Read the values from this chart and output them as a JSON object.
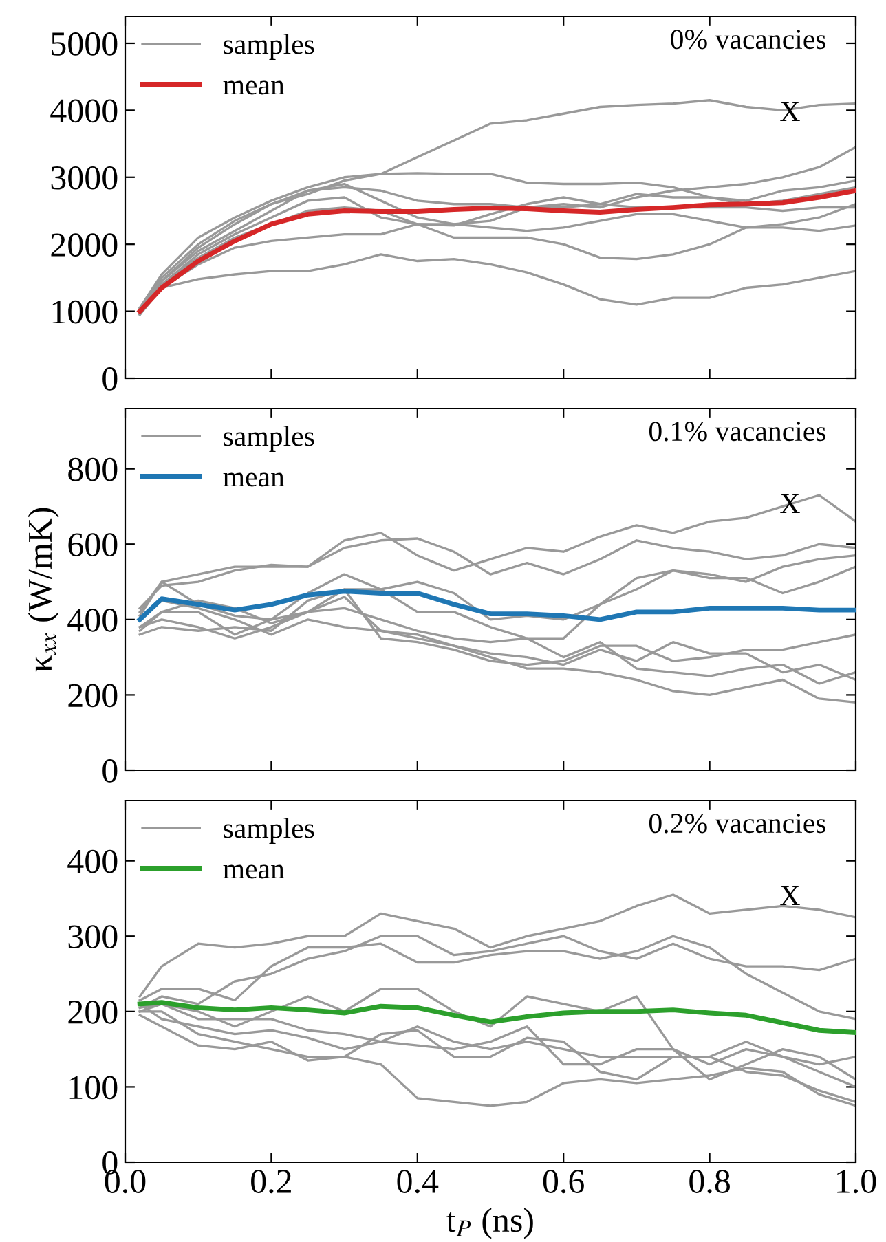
{
  "chart_data": [
    {
      "type": "line",
      "xlim": [
        0,
        1
      ],
      "xticks": [
        0.0,
        0.2,
        0.4,
        0.6,
        0.8,
        1.0
      ],
      "ylim": [
        0,
        5400
      ],
      "yticks": [
        0,
        1000,
        2000,
        3000,
        4000,
        5000
      ],
      "tick_labels": "y",
      "legend": "top left",
      "grid": false,
      "annotations": [
        "0% vacancies",
        "X"
      ],
      "x": [
        0.02,
        0.05,
        0.1,
        0.15,
        0.2,
        0.25,
        0.3,
        0.35,
        0.4,
        0.45,
        0.5,
        0.55,
        0.6,
        0.65,
        0.7,
        0.75,
        0.8,
        0.85,
        0.9,
        0.95,
        1.0
      ],
      "series": [
        {
          "name": "samples",
          "color": "#999999",
          "values": [
            1050,
            1500,
            2000,
            2350,
            2600,
            2750,
            2950,
            3050,
            3300,
            3550,
            3800,
            3850,
            3950,
            4050,
            4080,
            4100,
            4150,
            4050,
            4000,
            4080,
            4100
          ]
        },
        {
          "color": "#999999",
          "values": [
            1000,
            1450,
            1950,
            2300,
            2600,
            2800,
            2900,
            2650,
            2400,
            2300,
            2350,
            2550,
            2600,
            2550,
            2700,
            2800,
            2850,
            2900,
            3000,
            3150,
            3450
          ]
        },
        {
          "color": "#999999",
          "values": [
            1050,
            1550,
            2100,
            2400,
            2650,
            2850,
            3000,
            3050,
            3060,
            3050,
            3050,
            2920,
            2900,
            2900,
            2920,
            2850,
            2700,
            2650,
            2800,
            2850,
            2950
          ]
        },
        {
          "color": "#999999",
          "values": [
            980,
            1450,
            1900,
            2200,
            2500,
            2800,
            2850,
            2800,
            2650,
            2600,
            2600,
            2550,
            2550,
            2600,
            2750,
            2700,
            2700,
            2600,
            2650,
            2750,
            2850
          ]
        },
        {
          "color": "#999999",
          "values": [
            950,
            1400,
            1850,
            2150,
            2400,
            2650,
            2700,
            2400,
            2300,
            2100,
            2100,
            2100,
            2000,
            1800,
            1780,
            1850,
            2000,
            2250,
            2300,
            2400,
            2600
          ]
        },
        {
          "color": "#999999",
          "values": [
            950,
            1350,
            1700,
            1950,
            2050,
            2100,
            2150,
            2150,
            2300,
            2300,
            2250,
            2200,
            2250,
            2350,
            2450,
            2450,
            2350,
            2250,
            2250,
            2200,
            2280
          ]
        },
        {
          "color": "#999999",
          "values": [
            950,
            1350,
            1480,
            1550,
            1600,
            1600,
            1700,
            1850,
            1750,
            1780,
            1700,
            1580,
            1400,
            1180,
            1100,
            1200,
            1200,
            1350,
            1400,
            1500,
            1600
          ]
        },
        {
          "color": "#999999",
          "values": [
            1000,
            1400,
            1800,
            2100,
            2300,
            2500,
            2550,
            2500,
            2300,
            2280,
            2450,
            2600,
            2700,
            2600,
            2550,
            2550,
            2550,
            2550,
            2500,
            2550,
            2550
          ]
        },
        {
          "name": "mean",
          "color": "#d62728",
          "values": [
            1000,
            1350,
            1750,
            2050,
            2300,
            2450,
            2500,
            2490,
            2490,
            2520,
            2540,
            2530,
            2500,
            2480,
            2520,
            2550,
            2590,
            2600,
            2620,
            2700,
            2800
          ]
        }
      ]
    },
    {
      "type": "line",
      "ylabel": "κ$_{xx}$ (W/mK)",
      "xlim": [
        0,
        1
      ],
      "xticks": [
        0.0,
        0.2,
        0.4,
        0.6,
        0.8,
        1.0
      ],
      "ylim": [
        0,
        960
      ],
      "yticks": [
        0,
        200,
        400,
        600,
        800
      ],
      "tick_labels": "y",
      "legend": "top left",
      "grid": false,
      "annotations": [
        "0.1% vacancies",
        "X"
      ],
      "x": [
        0.02,
        0.05,
        0.1,
        0.15,
        0.2,
        0.25,
        0.3,
        0.35,
        0.4,
        0.45,
        0.5,
        0.55,
        0.6,
        0.65,
        0.7,
        0.75,
        0.8,
        0.85,
        0.9,
        0.95,
        1.0
      ],
      "series": [
        {
          "name": "samples",
          "color": "#999999",
          "values": [
            420,
            500,
            520,
            540,
            540,
            540,
            610,
            630,
            570,
            530,
            560,
            590,
            580,
            620,
            650,
            630,
            660,
            670,
            700,
            730,
            660
          ]
        },
        {
          "color": "#999999",
          "values": [
            430,
            490,
            500,
            530,
            545,
            540,
            590,
            610,
            615,
            580,
            520,
            550,
            520,
            560,
            610,
            590,
            580,
            560,
            570,
            600,
            590
          ]
        },
        {
          "color": "#999999",
          "values": [
            410,
            500,
            440,
            410,
            400,
            470,
            520,
            480,
            500,
            470,
            400,
            410,
            400,
            440,
            510,
            530,
            520,
            500,
            540,
            560,
            570
          ]
        },
        {
          "color": "#999999",
          "values": [
            380,
            420,
            420,
            360,
            400,
            420,
            480,
            480,
            420,
            420,
            380,
            350,
            350,
            440,
            480,
            530,
            510,
            510,
            470,
            500,
            540
          ]
        },
        {
          "color": "#999999",
          "values": [
            360,
            380,
            370,
            380,
            370,
            450,
            480,
            350,
            340,
            320,
            290,
            280,
            290,
            330,
            330,
            290,
            300,
            320,
            320,
            340,
            360
          ]
        },
        {
          "color": "#999999",
          "values": [
            380,
            400,
            380,
            350,
            380,
            420,
            460,
            370,
            350,
            330,
            310,
            300,
            280,
            320,
            290,
            340,
            310,
            310,
            260,
            280,
            240
          ]
        },
        {
          "color": "#999999",
          "values": [
            400,
            450,
            430,
            400,
            360,
            400,
            380,
            370,
            360,
            330,
            300,
            270,
            270,
            260,
            240,
            210,
            200,
            220,
            240,
            190,
            180
          ]
        },
        {
          "color": "#999999",
          "values": [
            370,
            420,
            450,
            430,
            390,
            420,
            430,
            400,
            370,
            350,
            340,
            350,
            300,
            340,
            270,
            260,
            250,
            270,
            280,
            230,
            260
          ]
        },
        {
          "name": "mean",
          "color": "#1f77b4",
          "values": [
            400,
            455,
            440,
            425,
            440,
            465,
            475,
            470,
            470,
            440,
            415,
            415,
            410,
            400,
            420,
            420,
            430,
            430,
            430,
            425,
            425
          ]
        }
      ]
    },
    {
      "type": "line",
      "xlabel": "t$_{P}$ (ns)",
      "xlim": [
        0,
        1
      ],
      "ylim": [
        0,
        480
      ],
      "yticks": [
        0,
        100,
        200,
        300,
        400
      ],
      "legend": "top left",
      "grid": false,
      "annotations": [
        "0.2% vacancies",
        "X"
      ],
      "xticks": [
        {
          "value": 0,
          "label": "0.0"
        },
        0.2,
        0.4,
        0.6,
        0.8,
        {
          "value": 1,
          "label": "1.0"
        }
      ],
      "x": [
        0.02,
        0.05,
        0.1,
        0.15,
        0.2,
        0.25,
        0.3,
        0.35,
        0.4,
        0.45,
        0.5,
        0.55,
        0.6,
        0.65,
        0.7,
        0.75,
        0.8,
        0.85,
        0.9,
        0.95,
        1.0
      ],
      "series": [
        {
          "name": "samples",
          "color": "#999999",
          "values": [
            220,
            260,
            290,
            285,
            290,
            300,
            300,
            330,
            320,
            310,
            285,
            300,
            310,
            320,
            340,
            355,
            330,
            335,
            340,
            335,
            325
          ]
        },
        {
          "color": "#999999",
          "values": [
            215,
            230,
            230,
            215,
            260,
            285,
            285,
            290,
            265,
            265,
            275,
            280,
            280,
            270,
            280,
            300,
            285,
            250,
            225,
            200,
            190
          ]
        },
        {
          "color": "#999999",
          "values": [
            205,
            220,
            210,
            240,
            250,
            270,
            280,
            300,
            300,
            275,
            280,
            290,
            300,
            280,
            270,
            290,
            270,
            260,
            260,
            255,
            270
          ]
        },
        {
          "color": "#999999",
          "values": [
            200,
            210,
            200,
            180,
            200,
            220,
            200,
            230,
            230,
            200,
            180,
            220,
            210,
            200,
            220,
            150,
            130,
            150,
            140,
            130,
            140
          ]
        },
        {
          "color": "#999999",
          "values": [
            210,
            190,
            180,
            170,
            175,
            165,
            150,
            160,
            180,
            160,
            150,
            160,
            150,
            140,
            140,
            140,
            140,
            160,
            140,
            120,
            100
          ]
        },
        {
          "color": "#999999",
          "values": [
            200,
            200,
            170,
            160,
            150,
            140,
            140,
            130,
            85,
            80,
            75,
            80,
            105,
            110,
            105,
            110,
            115,
            125,
            120,
            90,
            75
          ]
        },
        {
          "color": "#999999",
          "values": [
            195,
            180,
            155,
            150,
            160,
            135,
            140,
            170,
            175,
            140,
            140,
            165,
            160,
            120,
            110,
            140,
            140,
            120,
            115,
            95,
            80
          ]
        },
        {
          "color": "#999999",
          "values": [
            205,
            210,
            190,
            190,
            190,
            175,
            170,
            160,
            155,
            150,
            160,
            180,
            130,
            130,
            150,
            150,
            110,
            130,
            150,
            140,
            110
          ]
        },
        {
          "name": "mean",
          "color": "#2ca02c",
          "values": [
            210,
            212,
            205,
            202,
            205,
            202,
            198,
            207,
            205,
            195,
            186,
            193,
            198,
            200,
            200,
            202,
            198,
            195,
            185,
            175,
            172
          ]
        }
      ]
    }
  ]
}
